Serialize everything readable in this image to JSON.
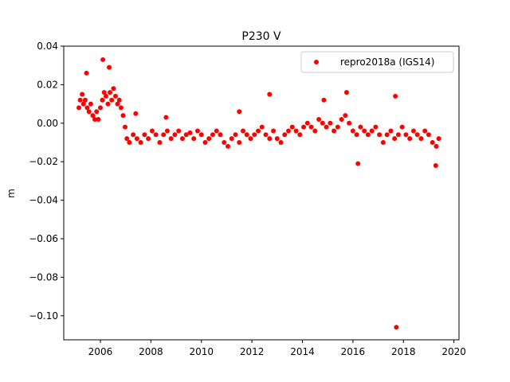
{
  "chart_data": {
    "type": "scatter",
    "title": "P230 V",
    "xlabel": "",
    "ylabel": "m",
    "xlim": [
      2004.55,
      2020.2
    ],
    "ylim": [
      -0.1125,
      0.04
    ],
    "xticks": [
      2006,
      2008,
      2010,
      2012,
      2014,
      2016,
      2018,
      2020
    ],
    "xtick_labels": [
      "2006",
      "2008",
      "2010",
      "2012",
      "2014",
      "2016",
      "2018",
      "2020"
    ],
    "yticks": [
      0.04,
      0.02,
      0.0,
      -0.02,
      -0.04,
      -0.06,
      -0.08,
      -0.1
    ],
    "ytick_labels": [
      "0.04",
      "0.02",
      "0.00",
      "−0.02",
      "−0.04",
      "−0.06",
      "−0.08",
      "−0.10"
    ],
    "grid": false,
    "legend_position": "top-right",
    "series": [
      {
        "name": "repro2018a (IGS14)",
        "color": "#ff0000",
        "marker": "circle",
        "x": [
          2005.15,
          2005.2,
          2005.28,
          2005.33,
          2005.4,
          2005.48,
          2005.55,
          2005.62,
          2005.7,
          2005.78,
          2005.85,
          2005.92,
          2006.0,
          2006.08,
          2006.15,
          2006.22,
          2006.3,
          2006.38,
          2006.45,
          2006.52,
          2006.6,
          2006.68,
          2006.75,
          2006.82,
          2006.9,
          2006.98,
          2007.05,
          2007.15,
          2007.3,
          2007.45,
          2007.6,
          2007.75,
          2007.9,
          2008.05,
          2008.2,
          2008.35,
          2008.5,
          2008.65,
          2008.8,
          2008.95,
          2009.1,
          2009.25,
          2009.4,
          2009.55,
          2009.7,
          2009.85,
          2010.0,
          2010.15,
          2010.3,
          2010.45,
          2010.6,
          2010.75,
          2010.9,
          2011.05,
          2011.2,
          2011.35,
          2011.5,
          2011.65,
          2011.8,
          2011.95,
          2012.1,
          2012.25,
          2012.4,
          2012.55,
          2012.7,
          2012.85,
          2013.0,
          2013.15,
          2013.3,
          2013.45,
          2013.6,
          2013.75,
          2013.9,
          2014.05,
          2014.2,
          2014.35,
          2014.5,
          2014.65,
          2014.8,
          2014.95,
          2015.1,
          2015.25,
          2015.4,
          2015.55,
          2015.7,
          2015.85,
          2016.0,
          2016.15,
          2016.3,
          2016.45,
          2016.6,
          2016.75,
          2016.9,
          2017.05,
          2017.2,
          2017.35,
          2017.5,
          2017.65,
          2017.8,
          2017.95,
          2018.1,
          2018.25,
          2018.4,
          2018.55,
          2018.7,
          2018.85,
          2019.0,
          2019.15,
          2019.3,
          2019.4,
          2005.45,
          2006.1,
          2006.35,
          2007.4,
          2008.6,
          2011.5,
          2012.7,
          2014.85,
          2015.75,
          2016.2,
          2017.68,
          2017.72,
          2019.28
        ],
        "y": [
          0.008,
          0.012,
          0.015,
          0.01,
          0.012,
          0.008,
          0.006,
          0.01,
          0.004,
          0.002,
          0.006,
          0.002,
          0.008,
          0.012,
          0.016,
          0.014,
          0.01,
          0.016,
          0.012,
          0.018,
          0.014,
          0.01,
          0.012,
          0.008,
          0.004,
          -0.002,
          -0.008,
          -0.01,
          -0.006,
          -0.008,
          -0.01,
          -0.006,
          -0.008,
          -0.004,
          -0.006,
          -0.01,
          -0.006,
          -0.004,
          -0.008,
          -0.006,
          -0.004,
          -0.008,
          -0.006,
          -0.005,
          -0.008,
          -0.004,
          -0.006,
          -0.01,
          -0.008,
          -0.006,
          -0.004,
          -0.006,
          -0.01,
          -0.012,
          -0.008,
          -0.006,
          -0.01,
          -0.004,
          -0.006,
          -0.008,
          -0.006,
          -0.004,
          -0.002,
          -0.006,
          -0.008,
          -0.004,
          -0.008,
          -0.01,
          -0.006,
          -0.004,
          -0.002,
          -0.004,
          -0.006,
          -0.002,
          0.0,
          -0.002,
          -0.004,
          0.002,
          0.0,
          -0.002,
          0.0,
          -0.004,
          -0.002,
          0.002,
          0.004,
          0.0,
          -0.004,
          -0.006,
          -0.002,
          -0.004,
          -0.006,
          -0.004,
          -0.002,
          -0.006,
          -0.01,
          -0.006,
          -0.004,
          -0.008,
          -0.006,
          -0.002,
          -0.006,
          -0.008,
          -0.004,
          -0.006,
          -0.008,
          -0.004,
          -0.006,
          -0.01,
          -0.012,
          -0.008,
          0.026,
          0.033,
          0.029,
          0.005,
          0.003,
          0.006,
          0.015,
          0.012,
          0.016,
          -0.021,
          0.014,
          -0.106,
          -0.022
        ]
      }
    ]
  }
}
